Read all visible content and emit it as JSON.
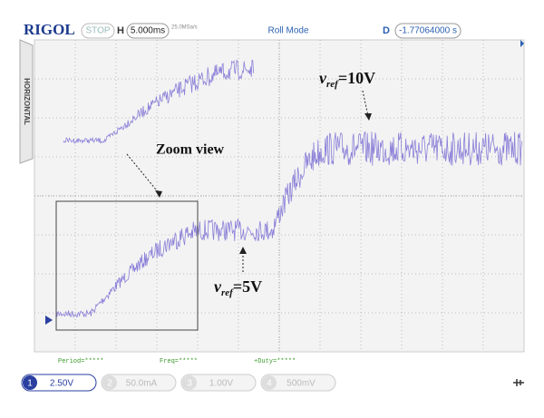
{
  "header": {
    "brand": "RIGOL",
    "status": "STOP",
    "timebase_label": "H",
    "timebase": "5.000ms",
    "sample_rate": "25.0MSa/s",
    "mode": "Roll Mode",
    "delay_label": "D",
    "delay": "-1.77064000 s"
  },
  "side_tab": "HORIZONTAL",
  "annotations": {
    "zoom": "Zoom view",
    "vref_high": {
      "symbol": "v",
      "subscript": "ref",
      "rest": "=10V"
    },
    "vref_low": {
      "symbol": "v",
      "subscript": "ref",
      "rest": "=5V"
    }
  },
  "measurements": [
    "Period=*****",
    "Freq=*****",
    "+Duty=*****"
  ],
  "channels": [
    {
      "number": "1",
      "scale": "2.50V"
    },
    {
      "number": "2",
      "scale": "50.0mA"
    },
    {
      "number": "3",
      "scale": "1.00V"
    },
    {
      "number": "4",
      "scale": "500mV"
    }
  ]
}
